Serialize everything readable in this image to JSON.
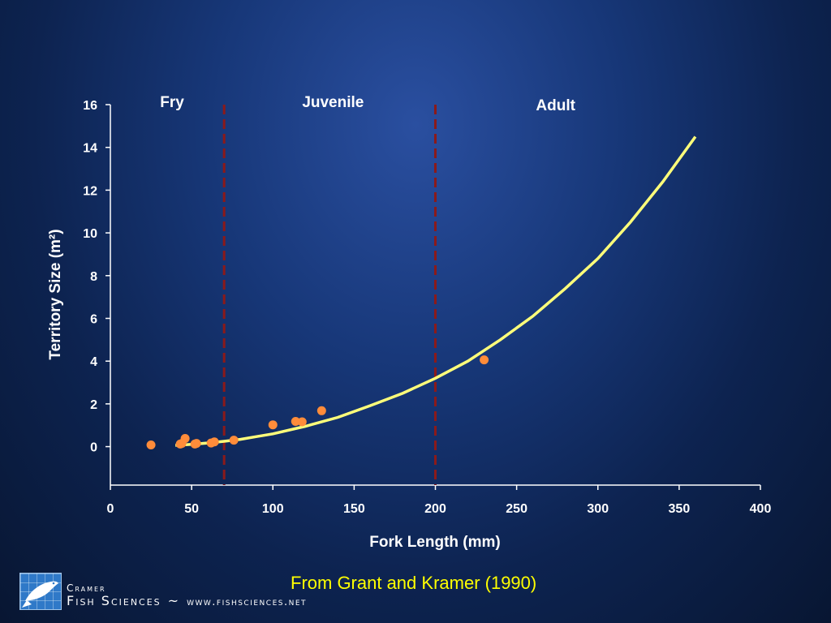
{
  "chart_data": {
    "type": "scatter",
    "title": "",
    "xlabel": "Fork Length (mm)",
    "ylabel": "Territory Size (m²)",
    "xlim": [
      0,
      400
    ],
    "ylim": [
      -1.8,
      16
    ],
    "x_ticks": [
      "0",
      "50",
      "100",
      "150",
      "200",
      "250",
      "300",
      "350",
      "400"
    ],
    "y_ticks": [
      "0",
      "2",
      "4",
      "6",
      "8",
      "10",
      "12",
      "14",
      "16"
    ],
    "grid": false,
    "legend": "none",
    "points": [
      {
        "x": 25,
        "y": 0.08
      },
      {
        "x": 43,
        "y": 0.12
      },
      {
        "x": 44,
        "y": 0.15
      },
      {
        "x": 46,
        "y": 0.38
      },
      {
        "x": 52,
        "y": 0.12
      },
      {
        "x": 53,
        "y": 0.15
      },
      {
        "x": 62,
        "y": 0.17
      },
      {
        "x": 64,
        "y": 0.22
      },
      {
        "x": 76,
        "y": 0.3
      },
      {
        "x": 100,
        "y": 1.02
      },
      {
        "x": 114,
        "y": 1.18
      },
      {
        "x": 118,
        "y": 1.16
      },
      {
        "x": 130,
        "y": 1.68
      },
      {
        "x": 230,
        "y": 4.06
      }
    ],
    "fit_curve": {
      "x": [
        40,
        50,
        60,
        70,
        80,
        90,
        100,
        120,
        140,
        160,
        180,
        200,
        220,
        240,
        260,
        280,
        300,
        320,
        340,
        360
      ],
      "y": [
        0.06,
        0.11,
        0.17,
        0.25,
        0.34,
        0.47,
        0.6,
        0.95,
        1.37,
        1.92,
        2.5,
        3.2,
        4.0,
        5.0,
        6.1,
        7.4,
        8.8,
        10.5,
        12.4,
        14.5
      ]
    },
    "stage_boundaries": [
      70,
      200
    ],
    "stages": [
      {
        "label": "Fry",
        "x": 38
      },
      {
        "label": "Juvenile",
        "x": 137
      },
      {
        "label": "Adult",
        "x": 274
      }
    ],
    "colors": {
      "points": "#ff8c3a",
      "curve": "#ffff7a",
      "boundary": "#8b1a1a",
      "axis": "#ffffff"
    }
  },
  "citation": "From Grant and Kramer (1990)",
  "brand": {
    "line1": "Cramer",
    "line2": "Fish Sciences",
    "separator": "~",
    "url": "www.fishsciences.net",
    "logo_icon": "fish-icon"
  }
}
